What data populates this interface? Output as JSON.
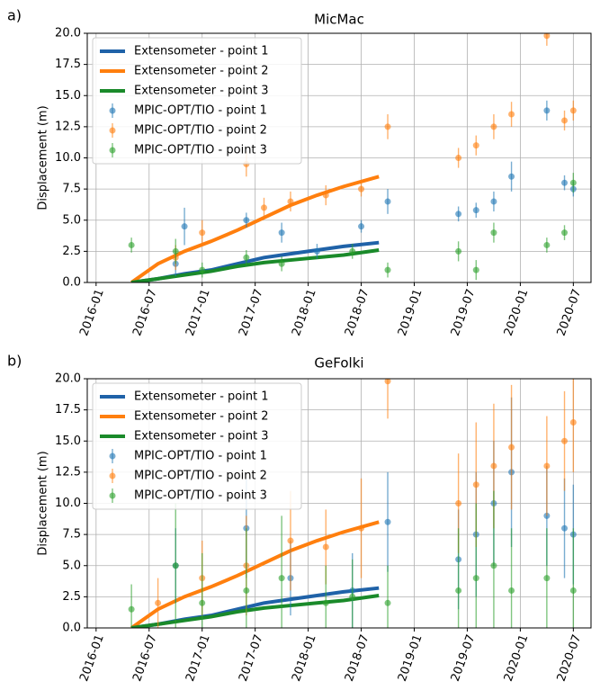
{
  "chart_data": [
    {
      "type": "line",
      "panel_label": "a)",
      "title": "MicMac",
      "ylabel": "Displacement (m)",
      "xlim": [
        "2015-12",
        "2020-09"
      ],
      "xticks": [
        "2016-01",
        "2016-07",
        "2017-01",
        "2017-07",
        "2018-01",
        "2018-07",
        "2019-01",
        "2019-07",
        "2020-01",
        "2020-07"
      ],
      "ylim": [
        0,
        20
      ],
      "yticks": [
        {
          "value": 0,
          "label": "0.0"
        },
        2.5,
        {
          "value": 5,
          "label": "5.0"
        },
        7.5,
        {
          "value": 10,
          "label": "10.0"
        },
        12.5,
        {
          "value": 15,
          "label": "15.0"
        },
        17.5,
        {
          "value": 20,
          "label": "20.0"
        }
      ],
      "grid": true,
      "legend": "upper left",
      "series": [
        {
          "name": "Extensometer - point 1",
          "style": "line",
          "color": "#1f62a8",
          "x": [
            "2016-05",
            "2016-08",
            "2016-11",
            "2017-02",
            "2017-05",
            "2017-08",
            "2017-11",
            "2018-02",
            "2018-05",
            "2018-09"
          ],
          "values": [
            0,
            0.3,
            0.7,
            1.0,
            1.5,
            2.0,
            2.3,
            2.6,
            2.9,
            3.2
          ]
        },
        {
          "name": "Extensometer - point 2",
          "style": "line",
          "color": "#ff7f0e",
          "x": [
            "2016-05",
            "2016-08",
            "2016-11",
            "2017-02",
            "2017-05",
            "2017-08",
            "2017-11",
            "2018-02",
            "2018-05",
            "2018-09"
          ],
          "values": [
            0,
            1.5,
            2.5,
            3.3,
            4.2,
            5.2,
            6.2,
            7.0,
            7.7,
            8.5
          ]
        },
        {
          "name": "Extensometer - point 3",
          "style": "line",
          "color": "#1a8a2a",
          "x": [
            "2016-05",
            "2016-08",
            "2016-11",
            "2017-02",
            "2017-05",
            "2017-08",
            "2017-11",
            "2018-02",
            "2018-05",
            "2018-09"
          ],
          "values": [
            0,
            0.3,
            0.6,
            0.9,
            1.3,
            1.6,
            1.8,
            2.0,
            2.2,
            2.6
          ]
        },
        {
          "name": "MPIC-OPT/TIO - point 1",
          "style": "errorbar",
          "color": "#1f77b4",
          "x": [
            "2016-10",
            "2016-11",
            "2017-06",
            "2017-10",
            "2018-02",
            "2018-07",
            "2018-10",
            "2019-06",
            "2019-08",
            "2019-10",
            "2019-12",
            "2020-04",
            "2020-06",
            "2020-07"
          ],
          "values": [
            1.5,
            4.5,
            5.0,
            4.0,
            2.5,
            4.5,
            6.5,
            5.5,
            5.8,
            6.5,
            8.5,
            13.8,
            8.0,
            7.5
          ],
          "errors": [
            1.0,
            1.5,
            0.6,
            0.8,
            0.6,
            0.5,
            1.0,
            0.6,
            0.6,
            0.8,
            1.2,
            0.8,
            0.6,
            0.6
          ]
        },
        {
          "name": "MPIC-OPT/TIO - point 2",
          "style": "errorbar",
          "color": "#ff7f0e",
          "x": [
            "2016-10",
            "2017-01",
            "2017-06",
            "2017-08",
            "2017-11",
            "2018-03",
            "2018-07",
            "2018-10",
            "2019-06",
            "2019-08",
            "2019-10",
            "2019-12",
            "2020-04",
            "2020-06",
            "2020-07"
          ],
          "values": [
            2.0,
            4.0,
            9.5,
            6.0,
            6.5,
            7.0,
            7.5,
            12.5,
            10.0,
            11.0,
            12.5,
            13.5,
            19.8,
            13.0,
            13.8
          ],
          "errors": [
            1.0,
            1.0,
            1.0,
            0.8,
            0.8,
            0.8,
            0.6,
            1.0,
            0.8,
            0.8,
            1.0,
            1.0,
            0.8,
            0.8,
            0.8
          ]
        },
        {
          "name": "MPIC-OPT/TIO - point 3",
          "style": "errorbar",
          "color": "#2ca02c",
          "x": [
            "2016-05",
            "2016-10",
            "2017-01",
            "2017-06",
            "2017-10",
            "2018-06",
            "2018-10",
            "2019-06",
            "2019-08",
            "2019-10",
            "2020-04",
            "2020-06",
            "2020-07"
          ],
          "values": [
            3.0,
            2.5,
            1.0,
            2.0,
            1.5,
            2.5,
            1.0,
            2.5,
            1.0,
            4.0,
            3.0,
            4.0,
            8.0
          ],
          "errors": [
            0.6,
            1.0,
            0.6,
            0.6,
            0.6,
            0.6,
            0.6,
            0.8,
            0.8,
            0.8,
            0.6,
            0.6,
            0.8
          ]
        }
      ]
    },
    {
      "type": "line",
      "panel_label": "b)",
      "title": "GeFolki",
      "ylabel": "Displacement (m)",
      "xlim": [
        "2015-12",
        "2020-09"
      ],
      "xticks": [
        "2016-01",
        "2016-07",
        "2017-01",
        "2017-07",
        "2018-01",
        "2018-07",
        "2019-01",
        "2019-07",
        "2020-01",
        "2020-07"
      ],
      "ylim": [
        0,
        20
      ],
      "yticks": [
        {
          "value": 0,
          "label": "0.0"
        },
        2.5,
        {
          "value": 5,
          "label": "5.0"
        },
        7.5,
        {
          "value": 10,
          "label": "10.0"
        },
        12.5,
        {
          "value": 15,
          "label": "15.0"
        },
        17.5,
        {
          "value": 20,
          "label": "20.0"
        }
      ],
      "grid": true,
      "legend": "upper left",
      "series": [
        {
          "name": "Extensometer - point 1",
          "style": "line",
          "color": "#1f62a8",
          "x": [
            "2016-05",
            "2016-08",
            "2016-11",
            "2017-02",
            "2017-05",
            "2017-08",
            "2017-11",
            "2018-02",
            "2018-05",
            "2018-09"
          ],
          "values": [
            0,
            0.3,
            0.7,
            1.0,
            1.5,
            2.0,
            2.3,
            2.6,
            2.9,
            3.2
          ]
        },
        {
          "name": "Extensometer - point 2",
          "style": "line",
          "color": "#ff7f0e",
          "x": [
            "2016-05",
            "2016-08",
            "2016-11",
            "2017-02",
            "2017-05",
            "2017-08",
            "2017-11",
            "2018-02",
            "2018-05",
            "2018-09"
          ],
          "values": [
            0,
            1.5,
            2.5,
            3.3,
            4.2,
            5.2,
            6.2,
            7.0,
            7.7,
            8.5
          ]
        },
        {
          "name": "Extensometer - point 3",
          "style": "line",
          "color": "#1a8a2a",
          "x": [
            "2016-05",
            "2016-08",
            "2016-11",
            "2017-02",
            "2017-05",
            "2017-08",
            "2017-11",
            "2018-02",
            "2018-05",
            "2018-09"
          ],
          "values": [
            0,
            0.3,
            0.6,
            0.9,
            1.3,
            1.6,
            1.8,
            2.0,
            2.2,
            2.6
          ]
        },
        {
          "name": "MPIC-OPT/TIO - point 1",
          "style": "errorbar",
          "color": "#1f77b4",
          "x": [
            "2016-10",
            "2017-06",
            "2017-11",
            "2018-06",
            "2018-10",
            "2019-06",
            "2019-08",
            "2019-10",
            "2019-12",
            "2020-04",
            "2020-06",
            "2020-07"
          ],
          "values": [
            5.0,
            8.0,
            4.0,
            3.0,
            8.5,
            5.5,
            7.5,
            10.0,
            12.5,
            9.0,
            8.0,
            7.5
          ],
          "errors": [
            3.0,
            4.0,
            3.0,
            3.0,
            4.0,
            4.0,
            5.0,
            5.0,
            6.0,
            4.0,
            4.0,
            4.0
          ]
        },
        {
          "name": "MPIC-OPT/TIO - point 2",
          "style": "errorbar",
          "color": "#ff7f0e",
          "x": [
            "2016-08",
            "2017-01",
            "2017-06",
            "2017-11",
            "2018-03",
            "2018-07",
            "2018-10",
            "2019-06",
            "2019-08",
            "2019-10",
            "2019-12",
            "2020-04",
            "2020-06",
            "2020-07"
          ],
          "values": [
            2.0,
            4.0,
            5.0,
            7.0,
            6.5,
            8.0,
            19.8,
            10.0,
            11.5,
            13.0,
            14.5,
            13.0,
            15.0,
            16.5
          ],
          "errors": [
            2.0,
            3.0,
            4.0,
            4.0,
            3.0,
            4.0,
            3.0,
            4.0,
            5.0,
            5.0,
            5.0,
            4.0,
            4.0,
            4.0
          ]
        },
        {
          "name": "MPIC-OPT/TIO - point 3",
          "style": "errorbar",
          "color": "#2ca02c",
          "x": [
            "2016-05",
            "2016-10",
            "2017-01",
            "2017-06",
            "2017-10",
            "2018-03",
            "2018-06",
            "2018-10",
            "2019-06",
            "2019-08",
            "2019-10",
            "2019-12",
            "2020-04",
            "2020-07"
          ],
          "values": [
            1.5,
            5.0,
            2.0,
            3.0,
            4.0,
            2.0,
            2.5,
            2.0,
            3.0,
            4.0,
            5.0,
            3.0,
            4.0,
            3.0
          ],
          "errors": [
            2.0,
            5.0,
            4.0,
            5.0,
            5.0,
            3.0,
            3.0,
            3.0,
            5.0,
            6.0,
            6.0,
            5.0,
            4.0,
            5.0
          ]
        }
      ]
    }
  ]
}
